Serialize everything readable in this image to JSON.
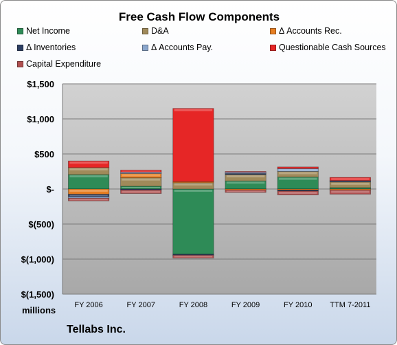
{
  "chart_data": {
    "type": "bar",
    "stacked": true,
    "title": "Free Cash Flow Components",
    "company": "Tellabs Inc.",
    "units": "millions",
    "categories": [
      "FY 2006",
      "FY 2007",
      "FY 2008",
      "FY 2009",
      "FY 2010",
      "TTM 7-2011"
    ],
    "ylim": [
      -1500,
      1500
    ],
    "yticks": [
      {
        "value": 1500,
        "label": "$1,500"
      },
      {
        "value": 1000,
        "label": "$1,000"
      },
      {
        "value": 500,
        "label": "$500"
      },
      {
        "value": 0,
        "label": "$-"
      },
      {
        "value": -500,
        "label": "$(500)"
      },
      {
        "value": -1000,
        "label": "$(1,000)"
      },
      {
        "value": -1500,
        "label": "$(1,500)"
      }
    ],
    "grid": true,
    "legend_position": "top",
    "series": [
      {
        "name": "Net Income",
        "color": "#2e8b57",
        "values": [
          205,
          40,
          -930,
          115,
          170,
          20
        ]
      },
      {
        "name": "D&A",
        "color": "#a08a5a",
        "values": [
          100,
          120,
          90,
          90,
          80,
          80
        ]
      },
      {
        "name": "Δ Accounts Rec.",
        "color": "#e67e22",
        "values": [
          -75,
          60,
          15,
          -15,
          -15,
          -15
        ]
      },
      {
        "name": "Δ Inventories",
        "color": "#2c3e63",
        "values": [
          -35,
          -15,
          -10,
          15,
          -15,
          10
        ]
      },
      {
        "name": "Δ Accounts Pay.",
        "color": "#8aa6cc",
        "values": [
          -20,
          20,
          -5,
          20,
          40,
          10
        ]
      },
      {
        "name": "Questionable Cash Sources",
        "color": "#e62626",
        "values": [
          95,
          30,
          1045,
          10,
          25,
          45
        ]
      },
      {
        "name": "Capital Expenditure",
        "color": "#b05050",
        "values": [
          -40,
          -50,
          -40,
          -35,
          -55,
          -60
        ]
      }
    ]
  }
}
